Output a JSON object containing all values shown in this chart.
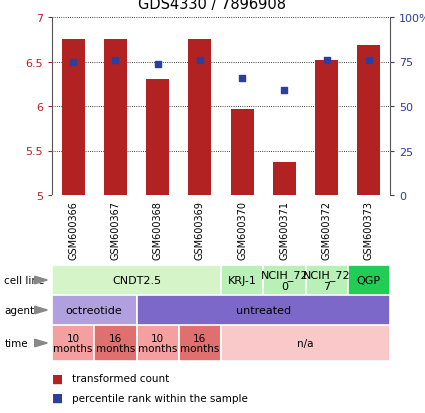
{
  "title": "GDS4330 / 7896908",
  "samples": [
    "GSM600366",
    "GSM600367",
    "GSM600368",
    "GSM600369",
    "GSM600370",
    "GSM600371",
    "GSM600372",
    "GSM600373"
  ],
  "bar_values": [
    6.75,
    6.75,
    6.3,
    6.75,
    5.97,
    5.37,
    6.52,
    6.68
  ],
  "scatter_values": [
    6.5,
    6.52,
    6.47,
    6.52,
    6.32,
    6.18,
    6.52,
    6.52
  ],
  "ylim_left": [
    5.0,
    7.0
  ],
  "ylim_right": [
    0,
    100
  ],
  "yticks_left": [
    5.0,
    5.5,
    6.0,
    6.5,
    7.0
  ],
  "ytick_labels_left": [
    "5",
    "5.5",
    "6",
    "6.5",
    "7"
  ],
  "yticks_right": [
    0,
    25,
    50,
    75,
    100
  ],
  "ytick_labels_right": [
    "0",
    "25",
    "50",
    "75",
    "100%"
  ],
  "bar_color": "#b22222",
  "scatter_color": "#2c3e9e",
  "bar_bottom": 5.0,
  "cell_line_groups": [
    {
      "label": "CNDT2.5",
      "start": 0,
      "end": 4,
      "color": "#d5f5c8"
    },
    {
      "label": "KRJ-1",
      "start": 4,
      "end": 5,
      "color": "#b8f0b8"
    },
    {
      "label": "NCIH_72\n0",
      "start": 5,
      "end": 6,
      "color": "#b8f0b8"
    },
    {
      "label": "NCIH_72\n7",
      "start": 6,
      "end": 7,
      "color": "#b8f0b8"
    },
    {
      "label": "QGP",
      "start": 7,
      "end": 8,
      "color": "#22cc55"
    }
  ],
  "agent_groups": [
    {
      "label": "octreotide",
      "start": 0,
      "end": 2,
      "color": "#b0a0e0"
    },
    {
      "label": "untreated",
      "start": 2,
      "end": 8,
      "color": "#7b68c8"
    }
  ],
  "time_groups": [
    {
      "label": "10\nmonths",
      "start": 0,
      "end": 1,
      "color": "#f5a0a0"
    },
    {
      "label": "16\nmonths",
      "start": 1,
      "end": 2,
      "color": "#e07070"
    },
    {
      "label": "10\nmonths",
      "start": 2,
      "end": 3,
      "color": "#f5a0a0"
    },
    {
      "label": "16\nmonths",
      "start": 3,
      "end": 4,
      "color": "#e07070"
    },
    {
      "label": "n/a",
      "start": 4,
      "end": 8,
      "color": "#f9c8c8"
    }
  ],
  "row_labels": [
    "cell line",
    "agent",
    "time"
  ],
  "legend_items": [
    {
      "label": "transformed count",
      "color": "#b22222"
    },
    {
      "label": "percentile rank within the sample",
      "color": "#2c3e9e"
    }
  ],
  "xlabels_bg": "#cccccc",
  "spine_color": "#888888",
  "background_color": "#ffffff"
}
